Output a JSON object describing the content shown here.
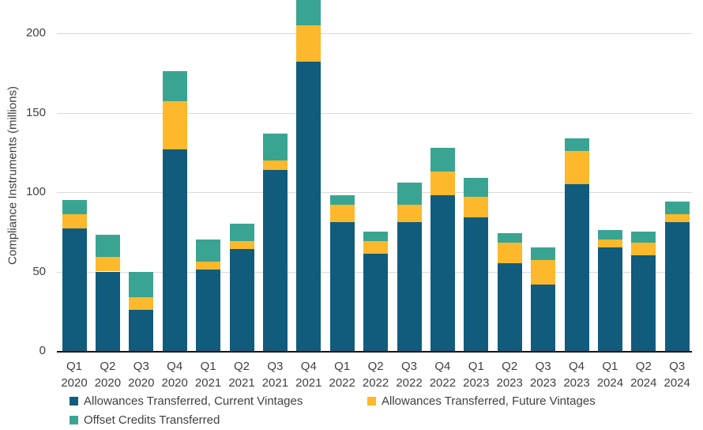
{
  "chart_data": {
    "type": "bar",
    "subtype": "stacked",
    "title": "",
    "xlabel": "",
    "ylabel": "Compliance Instruments (millions)",
    "ylim": [
      0,
      222
    ],
    "yticks": [
      0,
      50,
      100,
      150,
      200
    ],
    "grid": "horizontal-on",
    "legend_position": "bottom",
    "categories": [
      "Q1 2020",
      "Q2 2020",
      "Q3 2020",
      "Q4 2020",
      "Q1 2021",
      "Q2 2021",
      "Q3 2021",
      "Q4 2021",
      "Q1 2022",
      "Q2 2022",
      "Q3 2022",
      "Q4 2022",
      "Q1 2023",
      "Q2 2023",
      "Q3 2023",
      "Q4 2023",
      "Q1 2024",
      "Q2 2024",
      "Q3 2024"
    ],
    "series": [
      {
        "name": "Allowances Transferred, Current Vintages",
        "color": "#115c7c",
        "values": [
          77,
          50,
          26,
          127,
          51,
          64,
          114,
          182,
          81,
          61,
          81,
          98,
          84,
          55,
          42,
          105,
          65,
          60,
          81
        ]
      },
      {
        "name": "Allowances Transferred, Future Vintages",
        "color": "#fdb82c",
        "values": [
          9,
          9,
          8,
          30,
          5,
          5,
          6,
          23,
          11,
          8,
          11,
          15,
          13,
          13,
          15,
          21,
          5,
          8,
          5
        ]
      },
      {
        "name": "Offset Credits Transferred",
        "color": "#3aa492",
        "values": [
          9,
          14,
          16,
          19,
          14,
          11,
          17,
          16,
          6,
          6,
          14,
          15,
          12,
          6,
          8,
          8,
          6,
          7,
          8
        ]
      }
    ],
    "totals": [
      95,
      73,
      50,
      176,
      70,
      80,
      137,
      221,
      98,
      75,
      106,
      128,
      109,
      74,
      65,
      134,
      76,
      75,
      94
    ],
    "colors": {
      "grid": "#d9d9d9",
      "axis": "#141414",
      "tick_text": "#404040"
    }
  }
}
